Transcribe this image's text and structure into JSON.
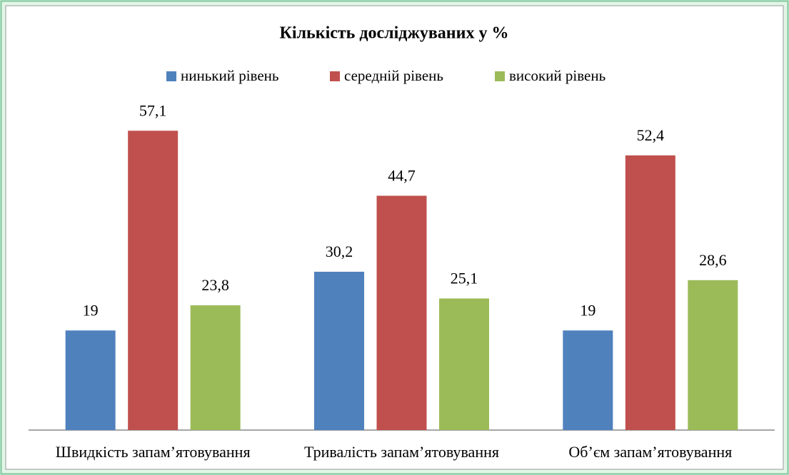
{
  "chart_data": {
    "type": "bar",
    "title": "Кількість досліджуваних у %",
    "categories": [
      "Швидкість запам’ятовування",
      "Тривалість  запам’ятовування",
      "Об’єм запам’ятовування"
    ],
    "series": [
      {
        "name": "нинький рівень",
        "color": "#4f81bd",
        "values": [
          19,
          30.2,
          19
        ],
        "value_labels": [
          "19",
          "30,2",
          "19"
        ]
      },
      {
        "name": "середній рівень",
        "color": "#c0504d",
        "values": [
          57.1,
          44.7,
          52.4
        ],
        "value_labels": [
          "57,1",
          "44,7",
          "52,4"
        ]
      },
      {
        "name": "високий рівень",
        "color": "#9bbb59",
        "values": [
          23.8,
          25.1,
          28.6
        ],
        "value_labels": [
          "23,8",
          "25,1",
          "28,6"
        ]
      }
    ],
    "ylim": [
      0,
      60
    ],
    "legend": "top"
  }
}
